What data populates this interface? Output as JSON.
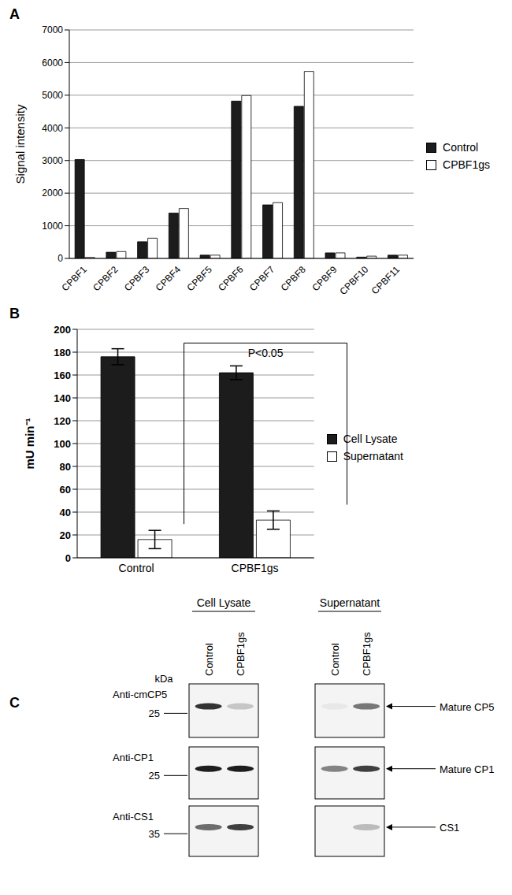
{
  "chart_data": [
    {
      "type": "bar",
      "panel": "A",
      "y_label": "Signal intensity",
      "categories": [
        "CPBF1",
        "CPBF2",
        "CPBF3",
        "CPBF4",
        "CPBF5",
        "CPBF6",
        "CPBF7",
        "CPBF8",
        "CPBF9",
        "CPBF10",
        "CPBF11"
      ],
      "series": [
        {
          "name": "Control",
          "color": "#1c1c1c",
          "values": [
            3030,
            190,
            510,
            1390,
            100,
            4820,
            1640,
            4660,
            170,
            40,
            100
          ]
        },
        {
          "name": "CPBF1gs",
          "color": "#ffffff",
          "values": [
            30,
            210,
            620,
            1530,
            100,
            4990,
            1710,
            5730,
            170,
            70,
            100
          ]
        }
      ],
      "ylim": [
        0,
        7000
      ],
      "yticks": [
        0,
        1000,
        2000,
        3000,
        4000,
        5000,
        6000,
        7000
      ],
      "grid": true,
      "legend": "right"
    },
    {
      "type": "bar",
      "panel": "B",
      "y_label": "mU min⁻¹",
      "categories": [
        "Control",
        "CPBF1gs"
      ],
      "series": [
        {
          "name": "Cell Lysate",
          "color": "#1c1c1c",
          "values": [
            176,
            162
          ],
          "errors": [
            7,
            6
          ]
        },
        {
          "name": "Supernatant",
          "color": "#ffffff",
          "values": [
            16,
            33
          ],
          "errors": [
            8,
            8
          ]
        }
      ],
      "annotations": [
        "P<0.05"
      ],
      "ylim": [
        0,
        200
      ],
      "yticks": [
        0,
        20,
        40,
        60,
        80,
        100,
        120,
        140,
        160,
        180,
        200
      ],
      "grid": true,
      "legend": "right"
    }
  ],
  "blot": {
    "panel": "C",
    "groups": [
      "Cell Lysate",
      "Supernatant"
    ],
    "lanes": [
      "Control",
      "CPBF1gs"
    ],
    "unit": "kDa",
    "rows": [
      {
        "antibody": "Anti-cmCP5",
        "marker": 25,
        "band": "Mature CP5",
        "intensity": [
          [
            0.85,
            0.2
          ],
          [
            0.05,
            0.55
          ]
        ]
      },
      {
        "antibody": "Anti-CP1",
        "marker": 25,
        "band": "Mature CP1",
        "intensity": [
          [
            0.95,
            0.95
          ],
          [
            0.5,
            0.8
          ]
        ]
      },
      {
        "antibody": "Anti-CS1",
        "marker": 35,
        "band": "CS1",
        "intensity": [
          [
            0.6,
            0.8
          ],
          [
            0.0,
            0.25
          ]
        ]
      }
    ]
  }
}
